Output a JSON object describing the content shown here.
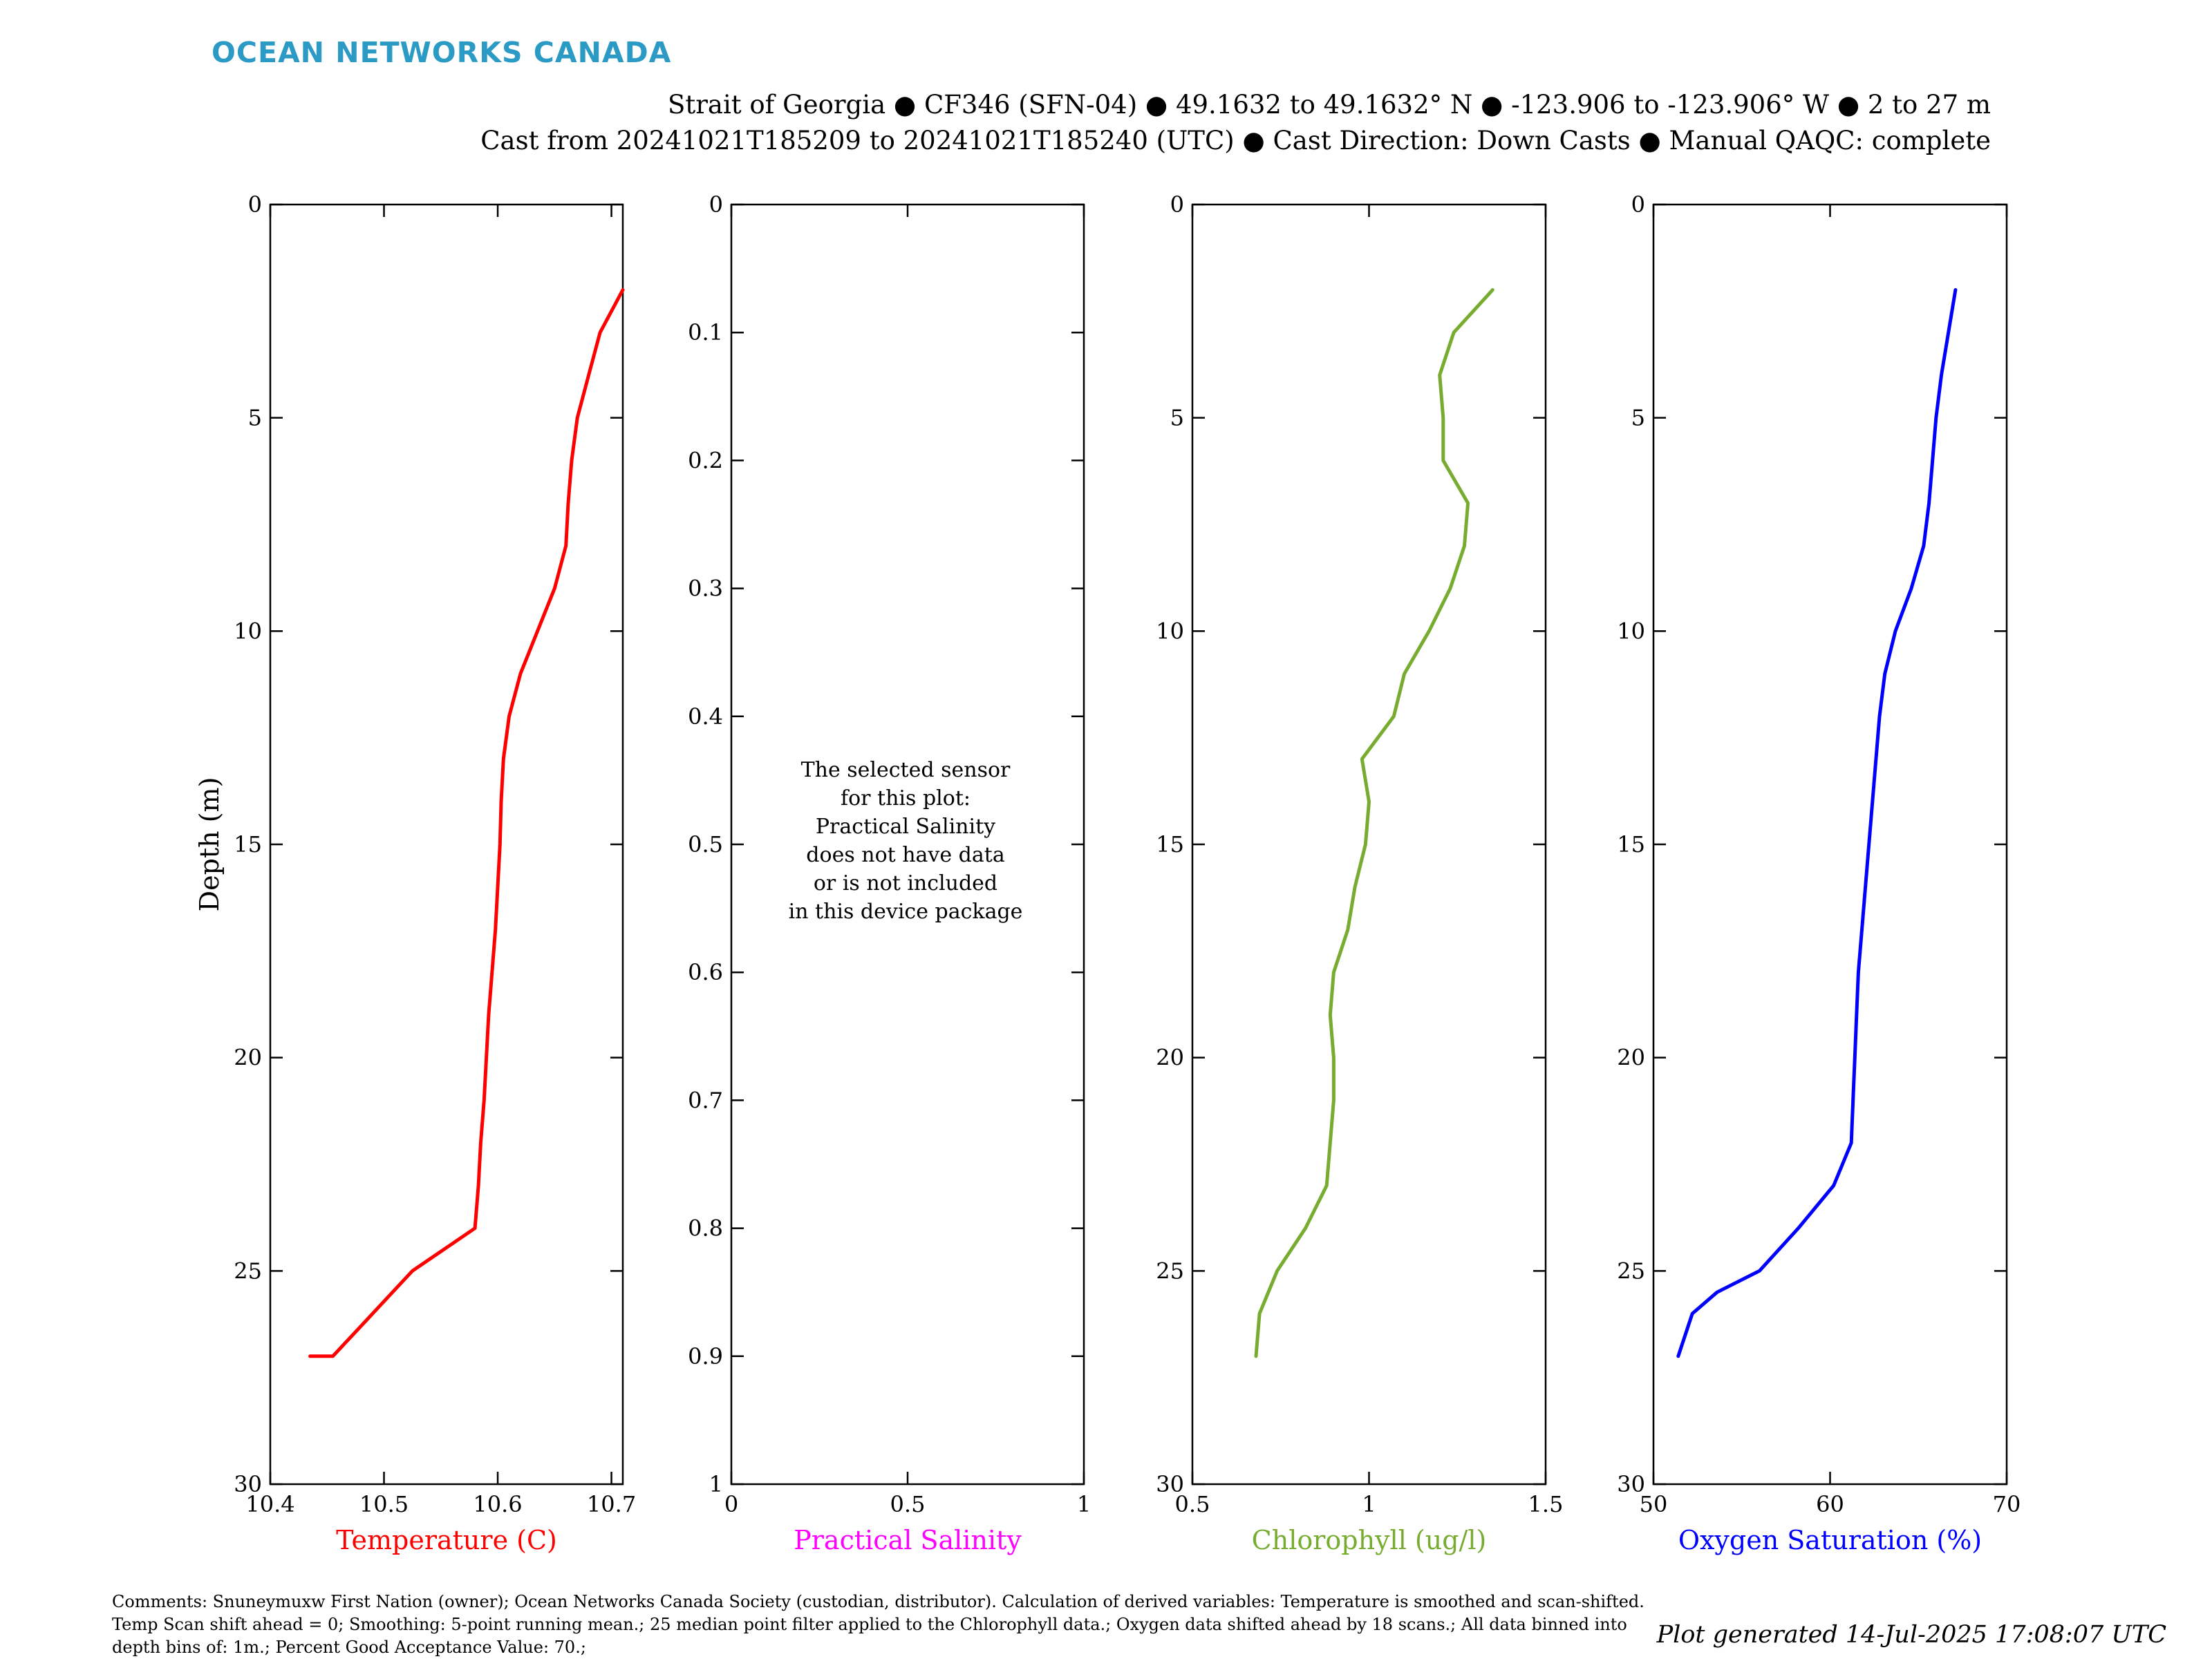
{
  "brand": {
    "text": "OCEAN NETWORKS CANADA",
    "color": "#2b9ac4"
  },
  "header": {
    "line1": "Strait of Georgia ● CF346 (SFN-04) ● 49.1632 to 49.1632° N ● -123.906 to -123.906° W ● 2 to 27 m",
    "line2": "Cast from 20241021T185209 to 20241021T185240 (UTC) ● Cast Direction: Down Casts ● Manual QAQC: complete"
  },
  "chart_data": [
    {
      "type": "line",
      "xlabel": "Temperature (C)",
      "ylabel": "Depth (m)",
      "color": "#ff0000",
      "xlim": [
        10.4,
        10.71
      ],
      "xticks": [
        10.4,
        10.5,
        10.6,
        10.7
      ],
      "xtick_labels": [
        "10.4",
        "10.5",
        "10.6",
        "10.7"
      ],
      "ylim": [
        0,
        30
      ],
      "yticks": [
        0,
        5,
        10,
        15,
        20,
        25,
        30
      ],
      "ytick_labels": [
        "0",
        "5",
        "10",
        "15",
        "20",
        "25",
        "30"
      ],
      "y_reversed": true,
      "grid": false,
      "x": [
        10.71,
        10.69,
        10.68,
        10.67,
        10.665,
        10.662,
        10.66,
        10.65,
        10.635,
        10.62,
        10.61,
        10.605,
        10.603,
        10.602,
        10.6,
        10.598,
        10.595,
        10.592,
        10.59,
        10.588,
        10.585,
        10.583,
        10.58,
        10.525,
        10.49,
        10.455,
        10.435
      ],
      "y": [
        2,
        3,
        4,
        5,
        6,
        7,
        8,
        9,
        10,
        11,
        12,
        13,
        14,
        15,
        16,
        17,
        18,
        19,
        20,
        21,
        22,
        23,
        24,
        25,
        26,
        27,
        27
      ]
    },
    {
      "type": "line",
      "xlabel": "Practical Salinity",
      "color": "#ff00ff",
      "xlim": [
        0,
        1
      ],
      "xticks": [
        0,
        0.5,
        1
      ],
      "xtick_labels": [
        "0",
        "0.5",
        "1"
      ],
      "ylim": [
        0,
        1
      ],
      "yticks": [
        0,
        0.1,
        0.2,
        0.3,
        0.4,
        0.5,
        0.6,
        0.7,
        0.8,
        0.9,
        1
      ],
      "ytick_labels": [
        "0",
        "0.1",
        "0.2",
        "0.3",
        "0.4",
        "0.5",
        "0.6",
        "0.7",
        "0.8",
        "0.9",
        "1"
      ],
      "y_reversed": true,
      "grid": false,
      "x": [],
      "y": [],
      "message": [
        "The selected sensor",
        "for this plot:",
        "Practical Salinity",
        "does not have data",
        "or is not included",
        "in this device package"
      ]
    },
    {
      "type": "line",
      "xlabel": "Chlorophyll (ug/l)",
      "color": "#77ac30",
      "xlim": [
        0.5,
        1.5
      ],
      "xticks": [
        0.5,
        1,
        1.5
      ],
      "xtick_labels": [
        "0.5",
        "1",
        "1.5"
      ],
      "ylim": [
        0,
        30
      ],
      "yticks": [
        0,
        5,
        10,
        15,
        20,
        25,
        30
      ],
      "ytick_labels": [
        "0",
        "5",
        "10",
        "15",
        "20",
        "25",
        "30"
      ],
      "y_reversed": true,
      "grid": false,
      "x": [
        1.35,
        1.24,
        1.2,
        1.21,
        1.21,
        1.28,
        1.27,
        1.23,
        1.17,
        1.1,
        1.07,
        0.98,
        1.0,
        0.99,
        0.96,
        0.94,
        0.9,
        0.89,
        0.9,
        0.9,
        0.89,
        0.88,
        0.82,
        0.74,
        0.69,
        0.68
      ],
      "y": [
        2,
        3,
        4,
        5,
        6,
        7,
        8,
        9,
        10,
        11,
        12,
        13,
        14,
        15,
        16,
        17,
        18,
        19,
        20,
        21,
        22,
        23,
        24,
        25,
        26,
        27
      ]
    },
    {
      "type": "line",
      "xlabel": "Oxygen Saturation (%)",
      "color": "#0000ff",
      "xlim": [
        50,
        70
      ],
      "xticks": [
        50,
        60,
        70
      ],
      "xtick_labels": [
        "50",
        "60",
        "70"
      ],
      "ylim": [
        0,
        30
      ],
      "yticks": [
        0,
        5,
        10,
        15,
        20,
        25,
        30
      ],
      "ytick_labels": [
        "0",
        "5",
        "10",
        "15",
        "20",
        "25",
        "30"
      ],
      "y_reversed": true,
      "grid": false,
      "x": [
        67.1,
        66.7,
        66.3,
        66.0,
        65.8,
        65.6,
        65.3,
        64.6,
        63.7,
        63.1,
        62.8,
        62.6,
        62.4,
        62.2,
        62.0,
        61.8,
        61.6,
        61.5,
        61.4,
        61.3,
        61.2,
        60.2,
        58.2,
        56.0,
        53.6,
        52.2,
        51.4
      ],
      "y": [
        2,
        3,
        4,
        5,
        6,
        7,
        8,
        9,
        10,
        11,
        12,
        13,
        14,
        15,
        16,
        17,
        18,
        19,
        20,
        21,
        22,
        23,
        24,
        25,
        25.5,
        26,
        27
      ]
    }
  ],
  "comments": "Comments: Snuneymuxw First Nation (owner); Ocean Networks Canada Society (custodian, distributor). Calculation of derived variables: Temperature is smoothed and scan-shifted. Temp Scan shift ahead = 0; Smoothing: 5-point running mean.; 25 median point filter applied to the Chlorophyll data.; Oxygen data shifted ahead by 18 scans.; All data binned into depth bins of: 1m.; Percent Good Acceptance Value: 70.;",
  "generated": "Plot generated 14-Jul-2025 17:08:07 UTC"
}
